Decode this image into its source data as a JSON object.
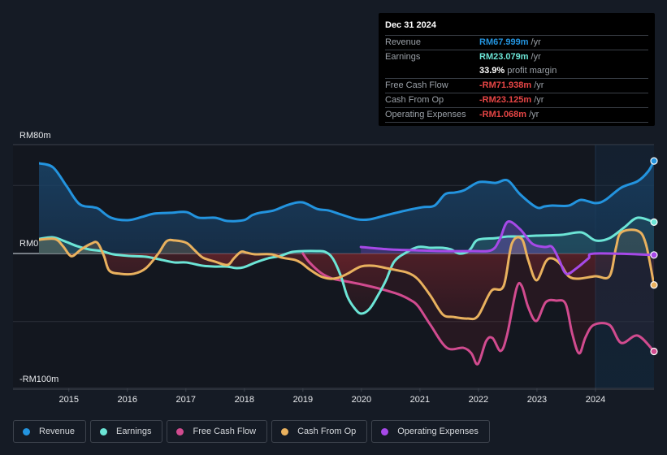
{
  "tooltip": {
    "date": "Dec 31 2024",
    "rows": [
      {
        "label": "Revenue",
        "value": "RM67.999m",
        "unit": "/yr",
        "color": "#2394df"
      },
      {
        "label": "Earnings",
        "value": "RM23.079m",
        "unit": "/yr",
        "color": "#6ce5d6"
      },
      {
        "label": "",
        "value": "33.9%",
        "unit": "profit margin",
        "color": "#ffffff"
      },
      {
        "label": "Free Cash Flow",
        "value": "-RM71.938m",
        "unit": "/yr",
        "color": "#e64545"
      },
      {
        "label": "Cash From Op",
        "value": "-RM23.125m",
        "unit": "/yr",
        "color": "#e64545"
      },
      {
        "label": "Operating Expenses",
        "value": "-RM1.068m",
        "unit": "/yr",
        "color": "#e64545"
      }
    ]
  },
  "legend": [
    {
      "label": "Revenue",
      "color": "#2394df"
    },
    {
      "label": "Earnings",
      "color": "#6ce5d6"
    },
    {
      "label": "Free Cash Flow",
      "color": "#d14b8f"
    },
    {
      "label": "Cash From Op",
      "color": "#e9b15e"
    },
    {
      "label": "Operating Expenses",
      "color": "#a649e8"
    }
  ],
  "chart_data": {
    "type": "line",
    "title": "",
    "xlabel": "",
    "ylabel": "",
    "currency_unit": "RM millions",
    "y_tick_labels": [
      "RM80m",
      "RM0",
      "-RM100m"
    ],
    "ylim": [
      -100,
      80
    ],
    "y_gridlines": [
      50,
      0,
      -50,
      -100
    ],
    "xlim": [
      2014.49,
      2025.0
    ],
    "x_tick_labels": [
      "2015",
      "2016",
      "2017",
      "2018",
      "2019",
      "2020",
      "2021",
      "2022",
      "2023",
      "2024"
    ],
    "x_ticks": [
      2015,
      2016,
      2017,
      2018,
      2019,
      2020,
      2021,
      2022,
      2023,
      2024
    ],
    "highlight_region_start": 2024.0,
    "grid": true,
    "legend_position": "bottom",
    "series": [
      {
        "name": "Revenue",
        "color": "#2394df",
        "x": [
          2014.49,
          2014.73,
          2014.96,
          2015.18,
          2015.42,
          2015.51,
          2015.72,
          2016.01,
          2016.25,
          2016.46,
          2016.74,
          2017.01,
          2017.22,
          2017.5,
          2017.71,
          2017.99,
          2018.13,
          2018.26,
          2018.5,
          2018.75,
          2018.99,
          2019.24,
          2019.44,
          2019.65,
          2019.93,
          2020.14,
          2020.42,
          2020.76,
          2021.04,
          2021.25,
          2021.43,
          2021.6,
          2021.76,
          2022.01,
          2022.29,
          2022.5,
          2022.71,
          2022.99,
          2023.13,
          2023.26,
          2023.54,
          2023.75,
          2024.0,
          2024.17,
          2024.44,
          2024.72,
          2024.9,
          2025.0
        ],
        "values": [
          66.3,
          63.3,
          49.6,
          36.4,
          34.0,
          32.8,
          26.3,
          24.5,
          26.9,
          29.3,
          29.9,
          30.4,
          26.3,
          26.3,
          23.9,
          24.5,
          28.1,
          29.9,
          31.6,
          35.8,
          37.6,
          32.8,
          31.6,
          28.7,
          25.1,
          25.1,
          28.1,
          31.6,
          34.0,
          35.2,
          43.6,
          44.8,
          46.6,
          52.5,
          51.9,
          53.7,
          43.6,
          34.0,
          34.6,
          35.2,
          35.2,
          39.4,
          37.0,
          39.4,
          48.4,
          53.1,
          60.3,
          67.999
        ]
      },
      {
        "name": "Earnings",
        "color": "#6ce5d6",
        "x": [
          2014.49,
          2014.73,
          2014.93,
          2015.14,
          2015.35,
          2015.56,
          2015.76,
          2016.04,
          2016.32,
          2016.6,
          2016.81,
          2017.01,
          2017.29,
          2017.5,
          2017.71,
          2017.85,
          2017.99,
          2018.19,
          2018.4,
          2018.61,
          2018.82,
          2019.03,
          2019.24,
          2019.38,
          2019.51,
          2019.65,
          2019.76,
          2019.89,
          2020.0,
          2020.14,
          2020.28,
          2020.42,
          2020.56,
          2020.76,
          2020.97,
          2021.18,
          2021.39,
          2021.53,
          2021.67,
          2021.81,
          2021.88,
          2021.99,
          2022.29,
          2022.5,
          2022.71,
          2022.99,
          2023.42,
          2023.76,
          2024.0,
          2024.24,
          2024.49,
          2024.72,
          2025.0
        ],
        "values": [
          10.7,
          11.9,
          9.0,
          5.4,
          3.0,
          1.8,
          -0.6,
          -1.8,
          -2.4,
          -4.8,
          -6.6,
          -6.6,
          -9.0,
          -9.6,
          -9.6,
          -10.7,
          -10.1,
          -6.6,
          -3.6,
          -1.8,
          1.2,
          1.8,
          1.8,
          1.2,
          -3.6,
          -16.7,
          -31.6,
          -40.6,
          -44.2,
          -40.6,
          -31.0,
          -19.7,
          -6.0,
          0.6,
          4.8,
          4.2,
          4.2,
          3.0,
          0.0,
          1.2,
          4.2,
          10.1,
          11.3,
          12.5,
          12.5,
          13.1,
          13.7,
          15.5,
          9.6,
          11.3,
          19.1,
          26.3,
          23.079
        ]
      },
      {
        "name": "Free Cash Flow",
        "color": "#d14b8f",
        "x": [
          2019.0,
          2019.1,
          2019.31,
          2019.51,
          2019.72,
          2020.0,
          2020.35,
          2020.63,
          2020.83,
          2020.97,
          2021.18,
          2021.46,
          2021.74,
          2021.88,
          2021.99,
          2022.13,
          2022.24,
          2022.38,
          2022.49,
          2022.65,
          2022.74,
          2022.85,
          2022.99,
          2023.15,
          2023.33,
          2023.49,
          2023.6,
          2023.72,
          2023.83,
          2023.97,
          2024.24,
          2024.44,
          2024.72,
          2025.0
        ],
        "values": [
          0.0,
          -6.0,
          -14.3,
          -18.5,
          -20.3,
          -22.7,
          -26.3,
          -29.9,
          -34.0,
          -38.8,
          -52.5,
          -69.3,
          -69.3,
          -73.4,
          -81.2,
          -64.5,
          -62.1,
          -71.6,
          -59.7,
          -25.7,
          -23.9,
          -39.4,
          -49.6,
          -35.8,
          -34.6,
          -37.0,
          -58.5,
          -73.4,
          -61.5,
          -52.5,
          -52.5,
          -65.7,
          -60.3,
          -71.938
        ]
      },
      {
        "name": "Cash From Op",
        "color": "#e9b15e",
        "x": [
          2014.49,
          2014.76,
          2014.9,
          2015.0,
          2015.07,
          2015.21,
          2015.38,
          2015.49,
          2015.6,
          2015.69,
          2015.88,
          2016.11,
          2016.32,
          2016.53,
          2016.67,
          2016.81,
          2017.01,
          2017.15,
          2017.29,
          2017.5,
          2017.71,
          2017.82,
          2017.94,
          2018.04,
          2018.18,
          2018.46,
          2018.64,
          2018.87,
          2018.98,
          2019.12,
          2019.3,
          2019.46,
          2019.6,
          2019.76,
          2019.99,
          2020.21,
          2020.42,
          2020.63,
          2020.8,
          2020.97,
          2021.18,
          2021.39,
          2021.57,
          2021.81,
          2021.99,
          2022.22,
          2022.43,
          2022.57,
          2022.74,
          2022.85,
          2022.99,
          2023.15,
          2023.26,
          2023.4,
          2023.54,
          2023.71,
          2024.0,
          2024.24,
          2024.35,
          2024.44,
          2024.72,
          2024.86,
          2025.0
        ],
        "values": [
          10.1,
          10.7,
          5.4,
          -0.6,
          -1.8,
          3.0,
          7.2,
          7.8,
          -1.8,
          -12.5,
          -14.9,
          -14.9,
          -10.7,
          0.0,
          9.0,
          9.6,
          7.8,
          2.4,
          -3.0,
          -6.0,
          -8.4,
          -3.6,
          1.2,
          0.6,
          -0.6,
          -0.6,
          -3.0,
          -4.8,
          -7.2,
          -11.9,
          -16.7,
          -18.5,
          -17.9,
          -14.9,
          -9.6,
          -9.0,
          -10.7,
          -12.5,
          -14.3,
          -19.1,
          -31.0,
          -44.8,
          -46.6,
          -47.8,
          -46.0,
          -27.5,
          -23.9,
          7.2,
          10.7,
          -4.8,
          -19.7,
          -6.0,
          -3.6,
          -7.8,
          -16.7,
          -18.5,
          -16.7,
          -16.7,
          4.2,
          15.5,
          16.7,
          7.2,
          -23.125
        ]
      },
      {
        "name": "Operating Expenses",
        "color": "#a649e8",
        "x": [
          2019.99,
          2020.49,
          2020.9,
          2021.39,
          2021.88,
          2022.22,
          2022.36,
          2022.5,
          2022.71,
          2022.92,
          2023.13,
          2023.26,
          2023.38,
          2023.5,
          2023.68,
          2023.88,
          2024.0,
          2025.0
        ],
        "values": [
          4.8,
          3.0,
          2.4,
          1.8,
          1.8,
          2.4,
          10.1,
          23.3,
          17.9,
          7.2,
          4.8,
          4.8,
          -4.8,
          -14.9,
          -10.7,
          -3.6,
          0.0,
          -1.068
        ]
      }
    ]
  }
}
